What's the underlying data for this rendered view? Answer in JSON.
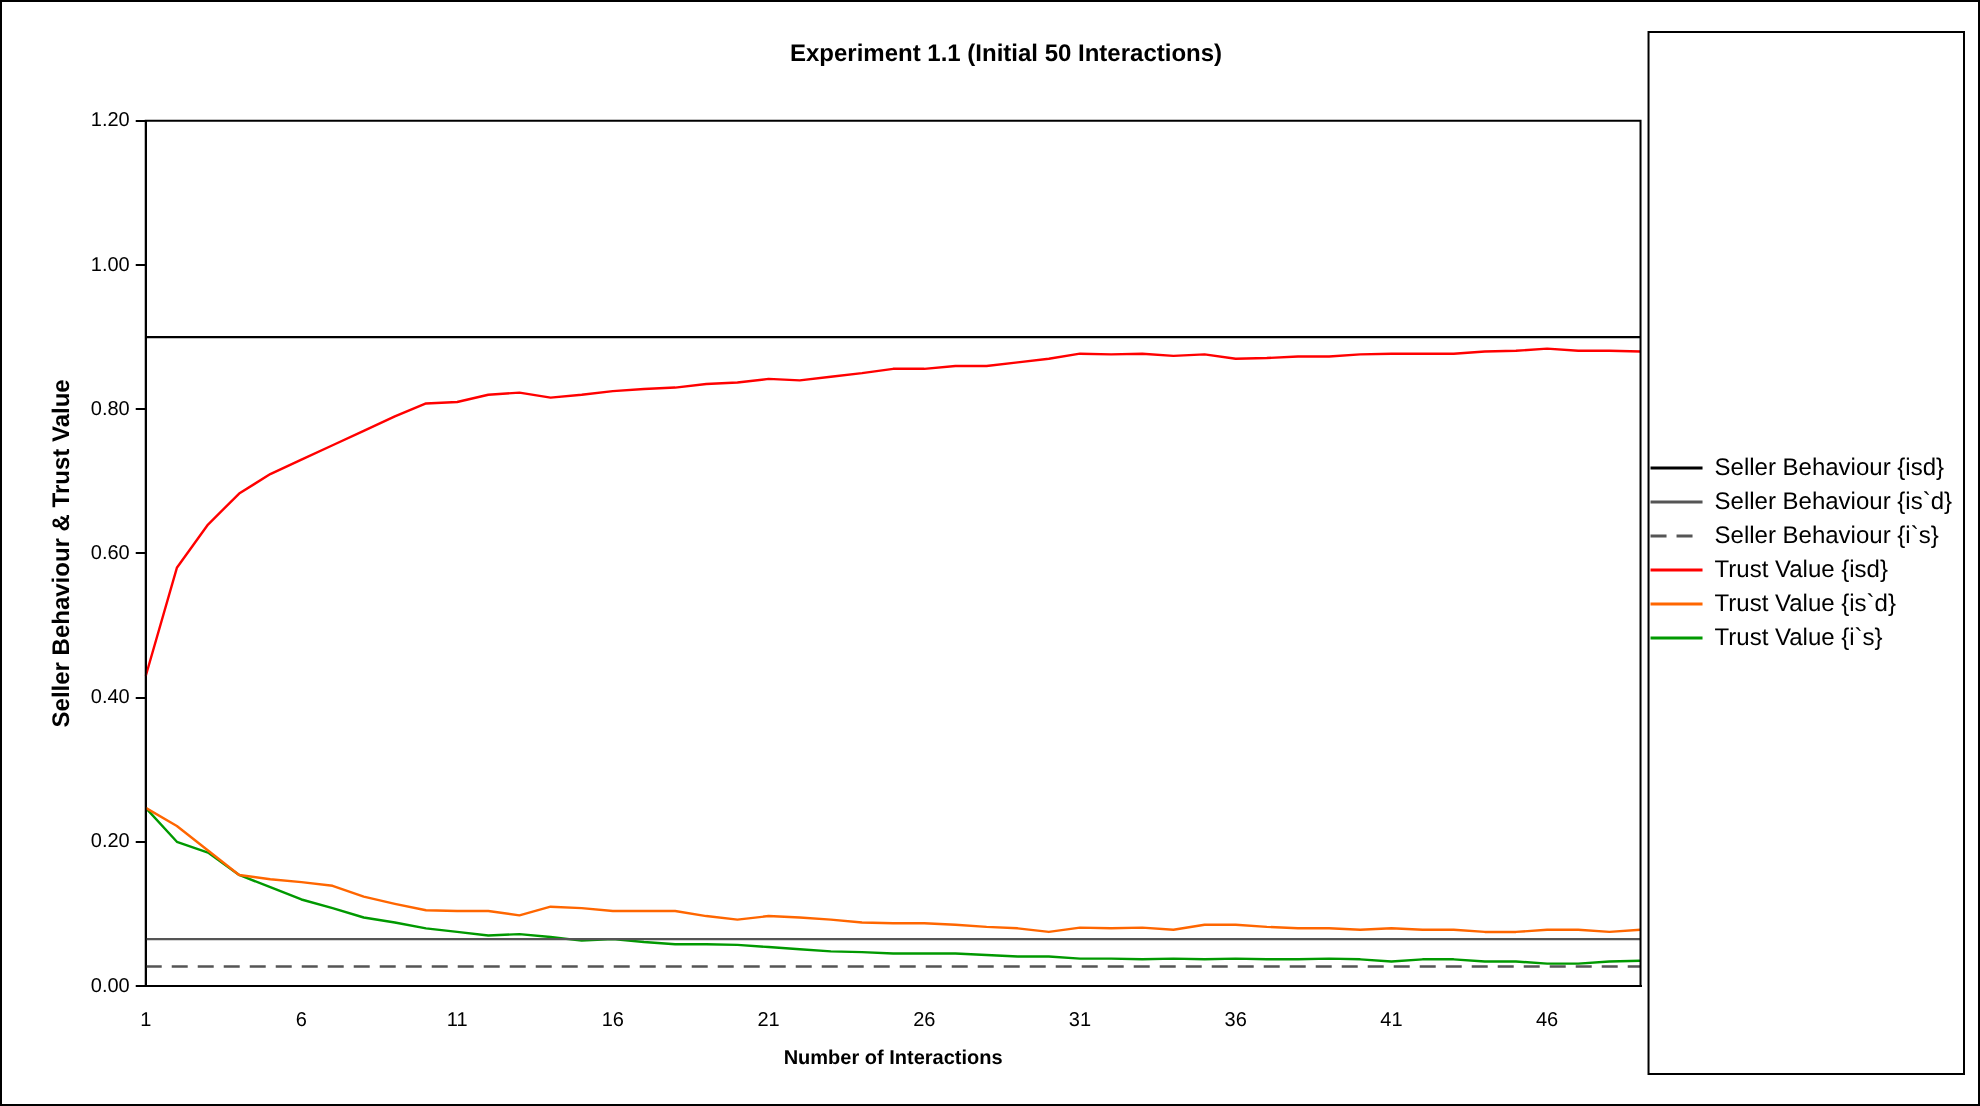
{
  "chart_data": {
    "type": "line",
    "title": "Experiment 1.1 (Initial 50 Interactions)",
    "xlabel": "Number of Interactions",
    "ylabel": "Seller Behaviour & Trust Value",
    "categories": [
      "1",
      null,
      null,
      null,
      null,
      "6",
      null,
      null,
      null,
      null,
      "11",
      null,
      null,
      null,
      null,
      "16",
      null,
      null,
      null,
      null,
      "21",
      null,
      null,
      null,
      null,
      "26",
      null,
      null,
      null,
      null,
      "31",
      null,
      null,
      null,
      null,
      "36",
      null,
      null,
      null,
      null,
      "41",
      null,
      null,
      null,
      null,
      "46",
      null,
      null,
      null
    ],
    "ylim": [
      0,
      1.2
    ],
    "yticks": [
      {
        "value": 0,
        "label": "0.00"
      },
      {
        "value": 0.2,
        "label": "0.20"
      },
      {
        "value": 0.4,
        "label": "0.40"
      },
      {
        "value": 0.6,
        "label": "0.60"
      },
      {
        "value": 0.8,
        "label": "0.80"
      },
      {
        "value": 1,
        "label": "1.00"
      },
      {
        "value": 1.2,
        "label": "1.20"
      }
    ],
    "grid": false,
    "legend": "right",
    "marker": "none",
    "series": [
      {
        "name": "Seller Behaviour {isd}",
        "color": "#000000",
        "line_style": "solid",
        "values": [
          0.9,
          0.9,
          0.9,
          0.9,
          0.9,
          0.9,
          0.9,
          0.9,
          0.9,
          0.9,
          0.9,
          0.9,
          0.9,
          0.9,
          0.9,
          0.9,
          0.9,
          0.9,
          0.9,
          0.9,
          0.9,
          0.9,
          0.9,
          0.9,
          0.9,
          0.9,
          0.9,
          0.9,
          0.9,
          0.9,
          0.9,
          0.9,
          0.9,
          0.9,
          0.9,
          0.9,
          0.9,
          0.9,
          0.9,
          0.9,
          0.9,
          0.9,
          0.9,
          0.9,
          0.9,
          0.9,
          0.9,
          0.9,
          0.9
        ]
      },
      {
        "name": "Seller Behaviour {is`d}",
        "color": "#555555",
        "line_style": "solid",
        "values": [
          0.065,
          0.065,
          0.065,
          0.065,
          0.065,
          0.065,
          0.065,
          0.065,
          0.065,
          0.065,
          0.065,
          0.065,
          0.065,
          0.065,
          0.065,
          0.065,
          0.065,
          0.065,
          0.065,
          0.065,
          0.065,
          0.065,
          0.065,
          0.065,
          0.065,
          0.065,
          0.065,
          0.065,
          0.065,
          0.065,
          0.065,
          0.065,
          0.065,
          0.065,
          0.065,
          0.065,
          0.065,
          0.065,
          0.065,
          0.065,
          0.065,
          0.065,
          0.065,
          0.065,
          0.065,
          0.065,
          0.065,
          0.065,
          0.065
        ]
      },
      {
        "name": "Seller Behaviour {i`s}",
        "color": "#555555",
        "line_style": "dashed",
        "values": [
          0.027,
          0.027,
          0.027,
          0.027,
          0.027,
          0.027,
          0.027,
          0.027,
          0.027,
          0.027,
          0.027,
          0.027,
          0.027,
          0.027,
          0.027,
          0.027,
          0.027,
          0.027,
          0.027,
          0.027,
          0.027,
          0.027,
          0.027,
          0.027,
          0.027,
          0.027,
          0.027,
          0.027,
          0.027,
          0.027,
          0.027,
          0.027,
          0.027,
          0.027,
          0.027,
          0.027,
          0.027,
          0.027,
          0.027,
          0.027,
          0.027,
          0.027,
          0.027,
          0.027,
          0.027,
          0.027,
          0.027,
          0.027,
          0.027
        ]
      },
      {
        "name": "Trust Value {isd}",
        "color": "#ff0000",
        "line_style": "solid",
        "values": [
          0.43,
          0.58,
          0.64,
          0.683,
          0.71,
          0.73,
          0.75,
          0.77,
          0.79,
          0.808,
          0.81,
          0.82,
          0.823,
          0.816,
          0.82,
          0.825,
          0.828,
          0.83,
          0.835,
          0.837,
          0.842,
          0.84,
          0.845,
          0.85,
          0.856,
          0.856,
          0.86,
          0.86,
          0.865,
          0.87,
          0.877,
          0.876,
          0.877,
          0.874,
          0.876,
          0.87,
          0.871,
          0.873,
          0.873,
          0.876,
          0.877,
          0.877,
          0.877,
          0.88,
          0.881,
          0.884,
          0.881,
          0.881,
          0.88
        ]
      },
      {
        "name": "Trust Value {is`d}",
        "color": "#ff6600",
        "line_style": "solid",
        "values": [
          0.247,
          0.222,
          0.188,
          0.154,
          0.148,
          0.144,
          0.139,
          0.124,
          0.114,
          0.105,
          0.104,
          0.104,
          0.098,
          0.11,
          0.108,
          0.104,
          0.104,
          0.104,
          0.097,
          0.092,
          0.097,
          0.095,
          0.092,
          0.088,
          0.087,
          0.087,
          0.085,
          0.082,
          0.08,
          0.075,
          0.081,
          0.08,
          0.081,
          0.078,
          0.085,
          0.085,
          0.082,
          0.08,
          0.08,
          0.078,
          0.08,
          0.078,
          0.078,
          0.075,
          0.075,
          0.078,
          0.078,
          0.075,
          0.078
        ]
      },
      {
        "name": "Trust Value {i`s}",
        "color": "#009900",
        "line_style": "solid",
        "values": [
          0.247,
          0.2,
          0.185,
          0.154,
          0.137,
          0.12,
          0.108,
          0.095,
          0.088,
          0.08,
          0.075,
          0.07,
          0.072,
          0.068,
          0.063,
          0.065,
          0.061,
          0.058,
          0.058,
          0.057,
          0.054,
          0.051,
          0.048,
          0.047,
          0.045,
          0.045,
          0.045,
          0.043,
          0.041,
          0.041,
          0.038,
          0.038,
          0.037,
          0.038,
          0.037,
          0.038,
          0.037,
          0.037,
          0.038,
          0.037,
          0.034,
          0.037,
          0.037,
          0.034,
          0.034,
          0.031,
          0.031,
          0.034,
          0.035
        ]
      }
    ]
  }
}
